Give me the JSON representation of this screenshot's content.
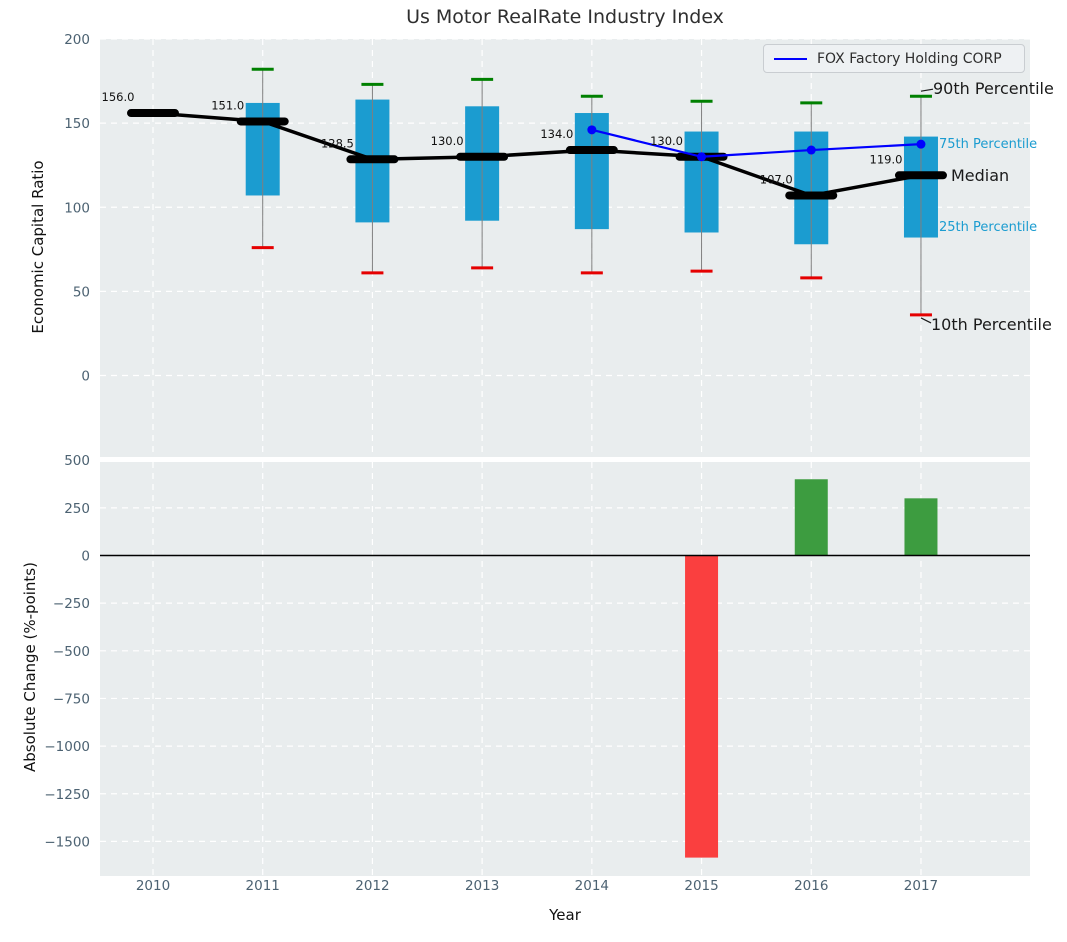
{
  "title": "Us Motor RealRate Industry Index",
  "legend": {
    "label": "FOX Factory Holding CORP",
    "line_color": "#0000ff"
  },
  "colors": {
    "plot_bg": "#e9edee",
    "grid": "#ffffff",
    "box_fill": "#1b9cd0",
    "whisker": "#7f7f7f",
    "cap_90th": "#008000",
    "cap_10th": "#e50000",
    "median": "#000000",
    "company_line": "#0000ff",
    "bar_positive": "#3d9c40",
    "bar_negative": "#fa3f3f",
    "tick_label": "#4c6272",
    "zero_line": "#000000"
  },
  "annotations_right": [
    {
      "label": "90th Percentile",
      "color": "#1a1a1a"
    },
    {
      "label": "75th Percentile",
      "color": "#1b9cd0"
    },
    {
      "label": "Median",
      "color": "#1a1a1a"
    },
    {
      "label": "25th Percentile",
      "color": "#1b9cd0"
    },
    {
      "label": "10th Percentile",
      "color": "#1a1a1a"
    }
  ],
  "chart_data": [
    {
      "type": "boxplot-percentile",
      "title": "Us Motor RealRate Industry Index",
      "ylabel": "Economic Capital Ratio",
      "categories": [
        2010,
        2011,
        2012,
        2013,
        2014,
        2015,
        2016,
        2017
      ],
      "ylim": [
        -48,
        200
      ],
      "ytick_values": [
        200,
        150,
        100,
        50,
        0
      ],
      "ytick_labels": [
        "200",
        "150",
        "100",
        "50",
        "0"
      ],
      "grid": true,
      "median": [
        156.0,
        151.0,
        128.5,
        130.0,
        134.0,
        130.0,
        107.0,
        119.0
      ],
      "median_labels": [
        "156.0",
        "151.0",
        "128.5",
        "130.0",
        "134.0",
        "130.0",
        "107.0",
        "119.0"
      ],
      "p90": [
        null,
        182,
        173,
        176,
        166,
        163,
        162,
        166
      ],
      "p75": [
        null,
        162,
        164,
        160,
        156,
        145,
        145,
        142
      ],
      "p25": [
        null,
        107,
        91,
        92,
        87,
        85,
        78,
        82
      ],
      "p10": [
        null,
        76,
        61,
        64,
        61,
        62,
        58,
        36
      ],
      "series": [
        {
          "name": "FOX Factory Holding CORP",
          "x": [
            2014,
            2015,
            2016,
            2017
          ],
          "values": [
            146,
            130,
            134,
            137.5
          ]
        }
      ],
      "legend_position": "upper right"
    },
    {
      "type": "bar",
      "ylabel": "Absolute Change (%-points)",
      "xlabel": "Year",
      "categories": [
        2010,
        2011,
        2012,
        2013,
        2014,
        2015,
        2016,
        2017
      ],
      "xtick_labels": [
        "2010",
        "2011",
        "2012",
        "2013",
        "2014",
        "2015",
        "2016",
        "2017"
      ],
      "values": [
        null,
        null,
        null,
        null,
        null,
        -1585,
        400,
        300
      ],
      "ylim": [
        -1680,
        500
      ],
      "ytick_values": [
        500,
        250,
        0,
        -250,
        -500,
        -750,
        -1000,
        -1250,
        -1500
      ],
      "ytick_labels": [
        "500",
        "250",
        "0",
        "−250",
        "−500",
        "−750",
        "−1000",
        "−1250",
        "−1500"
      ],
      "grid": true
    }
  ]
}
